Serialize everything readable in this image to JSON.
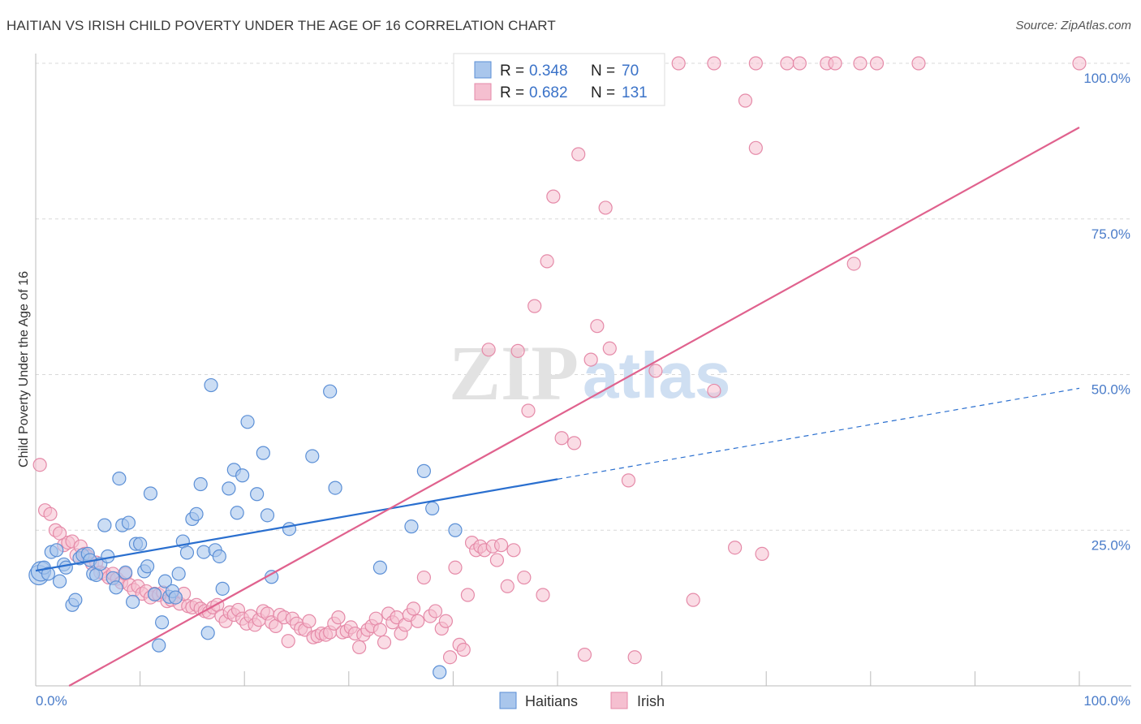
{
  "header": {
    "title": "HAITIAN VS IRISH CHILD POVERTY UNDER THE AGE OF 16 CORRELATION CHART",
    "source": "Source: ZipAtlas.com"
  },
  "watermark": {
    "zip": "ZIP",
    "atlas": "atlas"
  },
  "colors": {
    "haitian_fill": "#a9c6ec",
    "haitian_stroke": "#5b8fd6",
    "haitian_line": "#2a6fcf",
    "irish_fill": "#f5bfd0",
    "irish_stroke": "#e58aa8",
    "irish_line": "#e0628e",
    "grid": "#d8d8d8",
    "tick_text": "#4a7cc9"
  },
  "legend": {
    "rows": [
      {
        "r_label": "R = ",
        "r_value": "0.348",
        "n_label": "N = ",
        "n_value": "70"
      },
      {
        "r_label": "R = ",
        "r_value": "0.682",
        "n_label": "N = ",
        "n_value": "131"
      }
    ]
  },
  "bottom_legend": [
    {
      "label": "Haitians"
    },
    {
      "label": "Irish"
    }
  ],
  "chart_data": {
    "type": "scatter",
    "ylabel": "Child Poverty Under the Age of 16",
    "xlabel": "",
    "xlim": [
      0,
      100
    ],
    "ylim": [
      0,
      100
    ],
    "x_tick_labels": [
      "0.0%",
      "100.0%"
    ],
    "y_tick_labels": [
      "25.0%",
      "50.0%",
      "75.0%",
      "100.0%"
    ],
    "y_ticks": [
      25,
      50,
      75,
      100
    ],
    "grid": true,
    "series": [
      {
        "name": "Haitians",
        "r": 0.348,
        "n": 70,
        "trend": {
          "x0": 0,
          "y0": 18.5,
          "x1": 50,
          "y1": 33.2,
          "dashed_to_x": 100,
          "dashed_to_y": 47.8
        },
        "points": [
          [
            0.3,
            17.8
          ],
          [
            0.5,
            18.4
          ],
          [
            0.8,
            19.0
          ],
          [
            1.2,
            18.0
          ],
          [
            1.5,
            21.5
          ],
          [
            2.0,
            21.8
          ],
          [
            2.3,
            16.8
          ],
          [
            2.7,
            19.5
          ],
          [
            2.9,
            19.0
          ],
          [
            3.5,
            13.0
          ],
          [
            3.8,
            13.8
          ],
          [
            4.2,
            20.5
          ],
          [
            4.5,
            21.0
          ],
          [
            5.0,
            21.2
          ],
          [
            5.2,
            20.2
          ],
          [
            5.5,
            18.0
          ],
          [
            5.8,
            17.8
          ],
          [
            6.2,
            19.6
          ],
          [
            6.6,
            25.8
          ],
          [
            6.9,
            20.8
          ],
          [
            7.4,
            17.3
          ],
          [
            7.7,
            15.8
          ],
          [
            8.0,
            33.3
          ],
          [
            8.3,
            25.8
          ],
          [
            8.6,
            18.2
          ],
          [
            8.9,
            26.2
          ],
          [
            9.3,
            13.5
          ],
          [
            9.6,
            22.8
          ],
          [
            10.0,
            22.8
          ],
          [
            10.4,
            18.4
          ],
          [
            10.7,
            19.2
          ],
          [
            11.0,
            30.9
          ],
          [
            11.4,
            14.7
          ],
          [
            11.8,
            6.5
          ],
          [
            12.1,
            10.2
          ],
          [
            12.4,
            16.8
          ],
          [
            12.8,
            14.3
          ],
          [
            13.1,
            15.2
          ],
          [
            13.4,
            14.2
          ],
          [
            13.7,
            18.0
          ],
          [
            14.1,
            23.2
          ],
          [
            14.5,
            21.4
          ],
          [
            15.0,
            26.8
          ],
          [
            15.4,
            27.6
          ],
          [
            15.8,
            32.4
          ],
          [
            16.1,
            21.5
          ],
          [
            16.5,
            8.5
          ],
          [
            16.8,
            48.3
          ],
          [
            17.2,
            21.8
          ],
          [
            17.6,
            20.8
          ],
          [
            17.9,
            15.6
          ],
          [
            18.5,
            31.7
          ],
          [
            19.0,
            34.7
          ],
          [
            19.3,
            27.8
          ],
          [
            19.8,
            33.8
          ],
          [
            20.3,
            42.4
          ],
          [
            21.2,
            30.8
          ],
          [
            21.8,
            37.4
          ],
          [
            22.2,
            27.4
          ],
          [
            22.6,
            17.5
          ],
          [
            24.3,
            25.2
          ],
          [
            26.5,
            36.9
          ],
          [
            28.2,
            47.3
          ],
          [
            28.7,
            31.8
          ],
          [
            33.0,
            19.0
          ],
          [
            36.0,
            25.6
          ],
          [
            37.2,
            34.5
          ],
          [
            38.0,
            28.5
          ],
          [
            38.7,
            2.2
          ],
          [
            40.2,
            25.0
          ]
        ]
      },
      {
        "name": "Irish",
        "r": 0.682,
        "n": 131,
        "trend": {
          "x0": 3.2,
          "y0": 0.0,
          "x1": 100,
          "y1": 89.7
        },
        "points": [
          [
            0.4,
            35.5
          ],
          [
            0.9,
            28.2
          ],
          [
            1.4,
            27.6
          ],
          [
            1.9,
            25.0
          ],
          [
            2.3,
            24.5
          ],
          [
            2.7,
            22.6
          ],
          [
            3.1,
            23.0
          ],
          [
            3.5,
            23.2
          ],
          [
            3.9,
            21.0
          ],
          [
            4.3,
            22.4
          ],
          [
            4.7,
            21.2
          ],
          [
            5.0,
            20.8
          ],
          [
            5.4,
            19.6
          ],
          [
            5.8,
            19.8
          ],
          [
            6.2,
            18.2
          ],
          [
            6.6,
            18.0
          ],
          [
            7.0,
            17.4
          ],
          [
            7.4,
            18.0
          ],
          [
            7.8,
            17.2
          ],
          [
            8.2,
            16.6
          ],
          [
            8.6,
            18.0
          ],
          [
            9.0,
            16.2
          ],
          [
            9.4,
            15.4
          ],
          [
            9.8,
            16.0
          ],
          [
            10.2,
            14.8
          ],
          [
            10.6,
            15.2
          ],
          [
            11.0,
            14.2
          ],
          [
            11.4,
            14.8
          ],
          [
            11.8,
            14.6
          ],
          [
            12.2,
            15.0
          ],
          [
            12.6,
            13.6
          ],
          [
            13.0,
            13.8
          ],
          [
            13.4,
            14.2
          ],
          [
            13.8,
            13.2
          ],
          [
            14.2,
            14.8
          ],
          [
            14.6,
            12.8
          ],
          [
            15.0,
            12.6
          ],
          [
            15.4,
            13.0
          ],
          [
            15.8,
            12.4
          ],
          [
            16.2,
            12.0
          ],
          [
            16.6,
            11.8
          ],
          [
            17.0,
            12.6
          ],
          [
            17.4,
            13.0
          ],
          [
            17.8,
            11.2
          ],
          [
            18.2,
            10.4
          ],
          [
            18.6,
            11.8
          ],
          [
            19.0,
            11.4
          ],
          [
            19.4,
            12.2
          ],
          [
            19.8,
            10.8
          ],
          [
            20.2,
            10.0
          ],
          [
            20.6,
            11.2
          ],
          [
            21.0,
            9.8
          ],
          [
            21.4,
            10.6
          ],
          [
            21.8,
            12.0
          ],
          [
            22.2,
            11.6
          ],
          [
            22.6,
            10.2
          ],
          [
            23.0,
            9.6
          ],
          [
            23.4,
            11.4
          ],
          [
            23.8,
            11.0
          ],
          [
            24.2,
            7.2
          ],
          [
            24.6,
            10.8
          ],
          [
            25.0,
            10.0
          ],
          [
            25.4,
            9.2
          ],
          [
            25.8,
            9.0
          ],
          [
            26.2,
            10.4
          ],
          [
            26.6,
            7.8
          ],
          [
            27.0,
            8.0
          ],
          [
            27.4,
            8.4
          ],
          [
            27.8,
            8.2
          ],
          [
            28.2,
            8.6
          ],
          [
            28.6,
            10.0
          ],
          [
            29.0,
            11.0
          ],
          [
            29.4,
            8.6
          ],
          [
            29.8,
            8.8
          ],
          [
            30.2,
            9.4
          ],
          [
            30.6,
            8.4
          ],
          [
            31.0,
            6.2
          ],
          [
            31.4,
            8.2
          ],
          [
            31.8,
            9.0
          ],
          [
            32.2,
            9.6
          ],
          [
            32.6,
            10.8
          ],
          [
            33.0,
            9.0
          ],
          [
            33.4,
            7.0
          ],
          [
            33.8,
            11.6
          ],
          [
            34.2,
            10.2
          ],
          [
            34.6,
            11.0
          ],
          [
            35.0,
            8.4
          ],
          [
            35.4,
            9.8
          ],
          [
            35.8,
            11.4
          ],
          [
            36.2,
            12.4
          ],
          [
            36.6,
            10.4
          ],
          [
            37.2,
            17.4
          ],
          [
            37.8,
            11.2
          ],
          [
            38.3,
            12.0
          ],
          [
            38.9,
            9.2
          ],
          [
            39.3,
            10.4
          ],
          [
            39.7,
            4.6
          ],
          [
            40.2,
            19.0
          ],
          [
            40.6,
            6.6
          ],
          [
            41.0,
            5.8
          ],
          [
            41.4,
            14.6
          ],
          [
            41.8,
            23.0
          ],
          [
            42.2,
            21.8
          ],
          [
            42.6,
            22.4
          ],
          [
            43.0,
            21.8
          ],
          [
            43.4,
            54.0
          ],
          [
            43.8,
            22.4
          ],
          [
            44.2,
            20.2
          ],
          [
            44.6,
            22.6
          ],
          [
            45.2,
            16.0
          ],
          [
            45.8,
            21.8
          ],
          [
            46.2,
            53.8
          ],
          [
            46.8,
            17.4
          ],
          [
            47.2,
            44.2
          ],
          [
            47.8,
            61.0
          ],
          [
            48.6,
            14.6
          ],
          [
            49.0,
            68.2
          ],
          [
            49.6,
            78.6
          ],
          [
            50.4,
            39.8
          ],
          [
            51.6,
            39.0
          ],
          [
            52.0,
            85.4
          ],
          [
            52.6,
            5.0
          ],
          [
            53.2,
            52.4
          ],
          [
            53.8,
            57.8
          ],
          [
            54.6,
            76.8
          ],
          [
            55.0,
            54.2
          ],
          [
            56.8,
            33.0
          ],
          [
            57.4,
            4.6
          ],
          [
            59.4,
            50.6
          ],
          [
            63.0,
            13.8
          ],
          [
            65.0,
            47.4
          ],
          [
            67.0,
            22.2
          ],
          [
            68.0,
            94.0
          ],
          [
            69.0,
            86.4
          ],
          [
            69.6,
            21.2
          ],
          [
            78.4,
            67.8
          ]
        ]
      }
    ],
    "top_row_points_irish_x": [
      46.0,
      47.2,
      48.0,
      49.6,
      54.6,
      55.6,
      59.2,
      61.6,
      65.0,
      69.0,
      72.0,
      73.2,
      75.8,
      76.6,
      79.0,
      80.6,
      84.6,
      100.0
    ]
  }
}
